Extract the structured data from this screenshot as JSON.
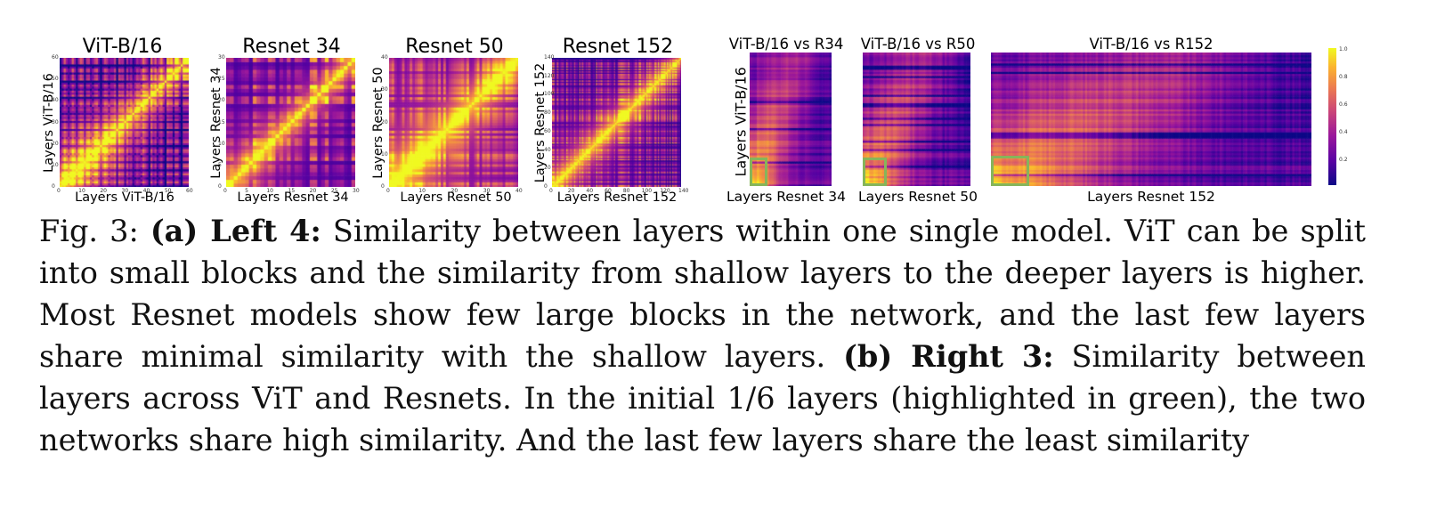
{
  "figure_label": "Fig. 3:",
  "colors": {
    "highlight": "#86b55a"
  },
  "left_panels": [
    {
      "id": "vit",
      "title": "ViT-B/16",
      "xlabel": "Layers ViT-B/16",
      "ylabel": "Layers ViT-B/16",
      "xticks": [
        "0",
        "10",
        "20",
        "30",
        "40",
        "50",
        "60"
      ],
      "yticks": [
        "0",
        "10",
        "20",
        "30",
        "40",
        "50",
        "60"
      ]
    },
    {
      "id": "r34",
      "title": "Resnet 34",
      "xlabel": "Layers Resnet 34",
      "ylabel": "Layers Resnet 34",
      "xticks": [
        "0",
        "5",
        "10",
        "15",
        "20",
        "25",
        "30"
      ],
      "yticks": [
        "0",
        "5",
        "10",
        "15",
        "20",
        "25",
        "30"
      ]
    },
    {
      "id": "r50",
      "title": "Resnet 50",
      "xlabel": "Layers Resnet 50",
      "ylabel": "Layers Resnet 50",
      "xticks": [
        "0",
        "10",
        "20",
        "30",
        "40"
      ],
      "yticks": [
        "0",
        "10",
        "20",
        "30",
        "40"
      ]
    },
    {
      "id": "r152",
      "title": "Resnet 152",
      "xlabel": "Layers Resnet 152",
      "ylabel": "Layers Resnet 152",
      "xticks": [
        "0",
        "20",
        "40",
        "60",
        "80",
        "100",
        "120",
        "140"
      ],
      "yticks": [
        "0",
        "20",
        "40",
        "60",
        "80",
        "100",
        "120",
        "140"
      ]
    }
  ],
  "right_panels": [
    {
      "id": "vr34",
      "title": "ViT-B/16 vs R34",
      "xlabel": "Layers Resnet 34"
    },
    {
      "id": "vr50",
      "title": "ViT-B/16 vs R50",
      "xlabel": "Layers Resnet 50"
    },
    {
      "id": "vr152",
      "title": "ViT-B/16 vs R152",
      "xlabel": "Layers Resnet 152"
    }
  ],
  "right_ylabel": "Layers ViT-B/16",
  "colorbar_ticks": [
    "1.0",
    "0.8",
    "0.6",
    "0.4",
    "0.2"
  ],
  "caption": {
    "prefix": "Fig. 3:",
    "a_label": "(a) Left 4:",
    "a_text": "Similarity between layers within one single model. ViT can be split into small blocks and the similarity from shallow layers to the deeper layers is higher. Most Resnet models show few large blocks in the network, and the last few layers share minimal similarity with the shallow layers.",
    "b_label": "(b) Right 3:",
    "b_text": "Similarity between layers across ViT and Resnets. In the initial 1/6 layers (highlighted in green), the two networks share high similarity. And the last few layers share the least similarity"
  }
}
